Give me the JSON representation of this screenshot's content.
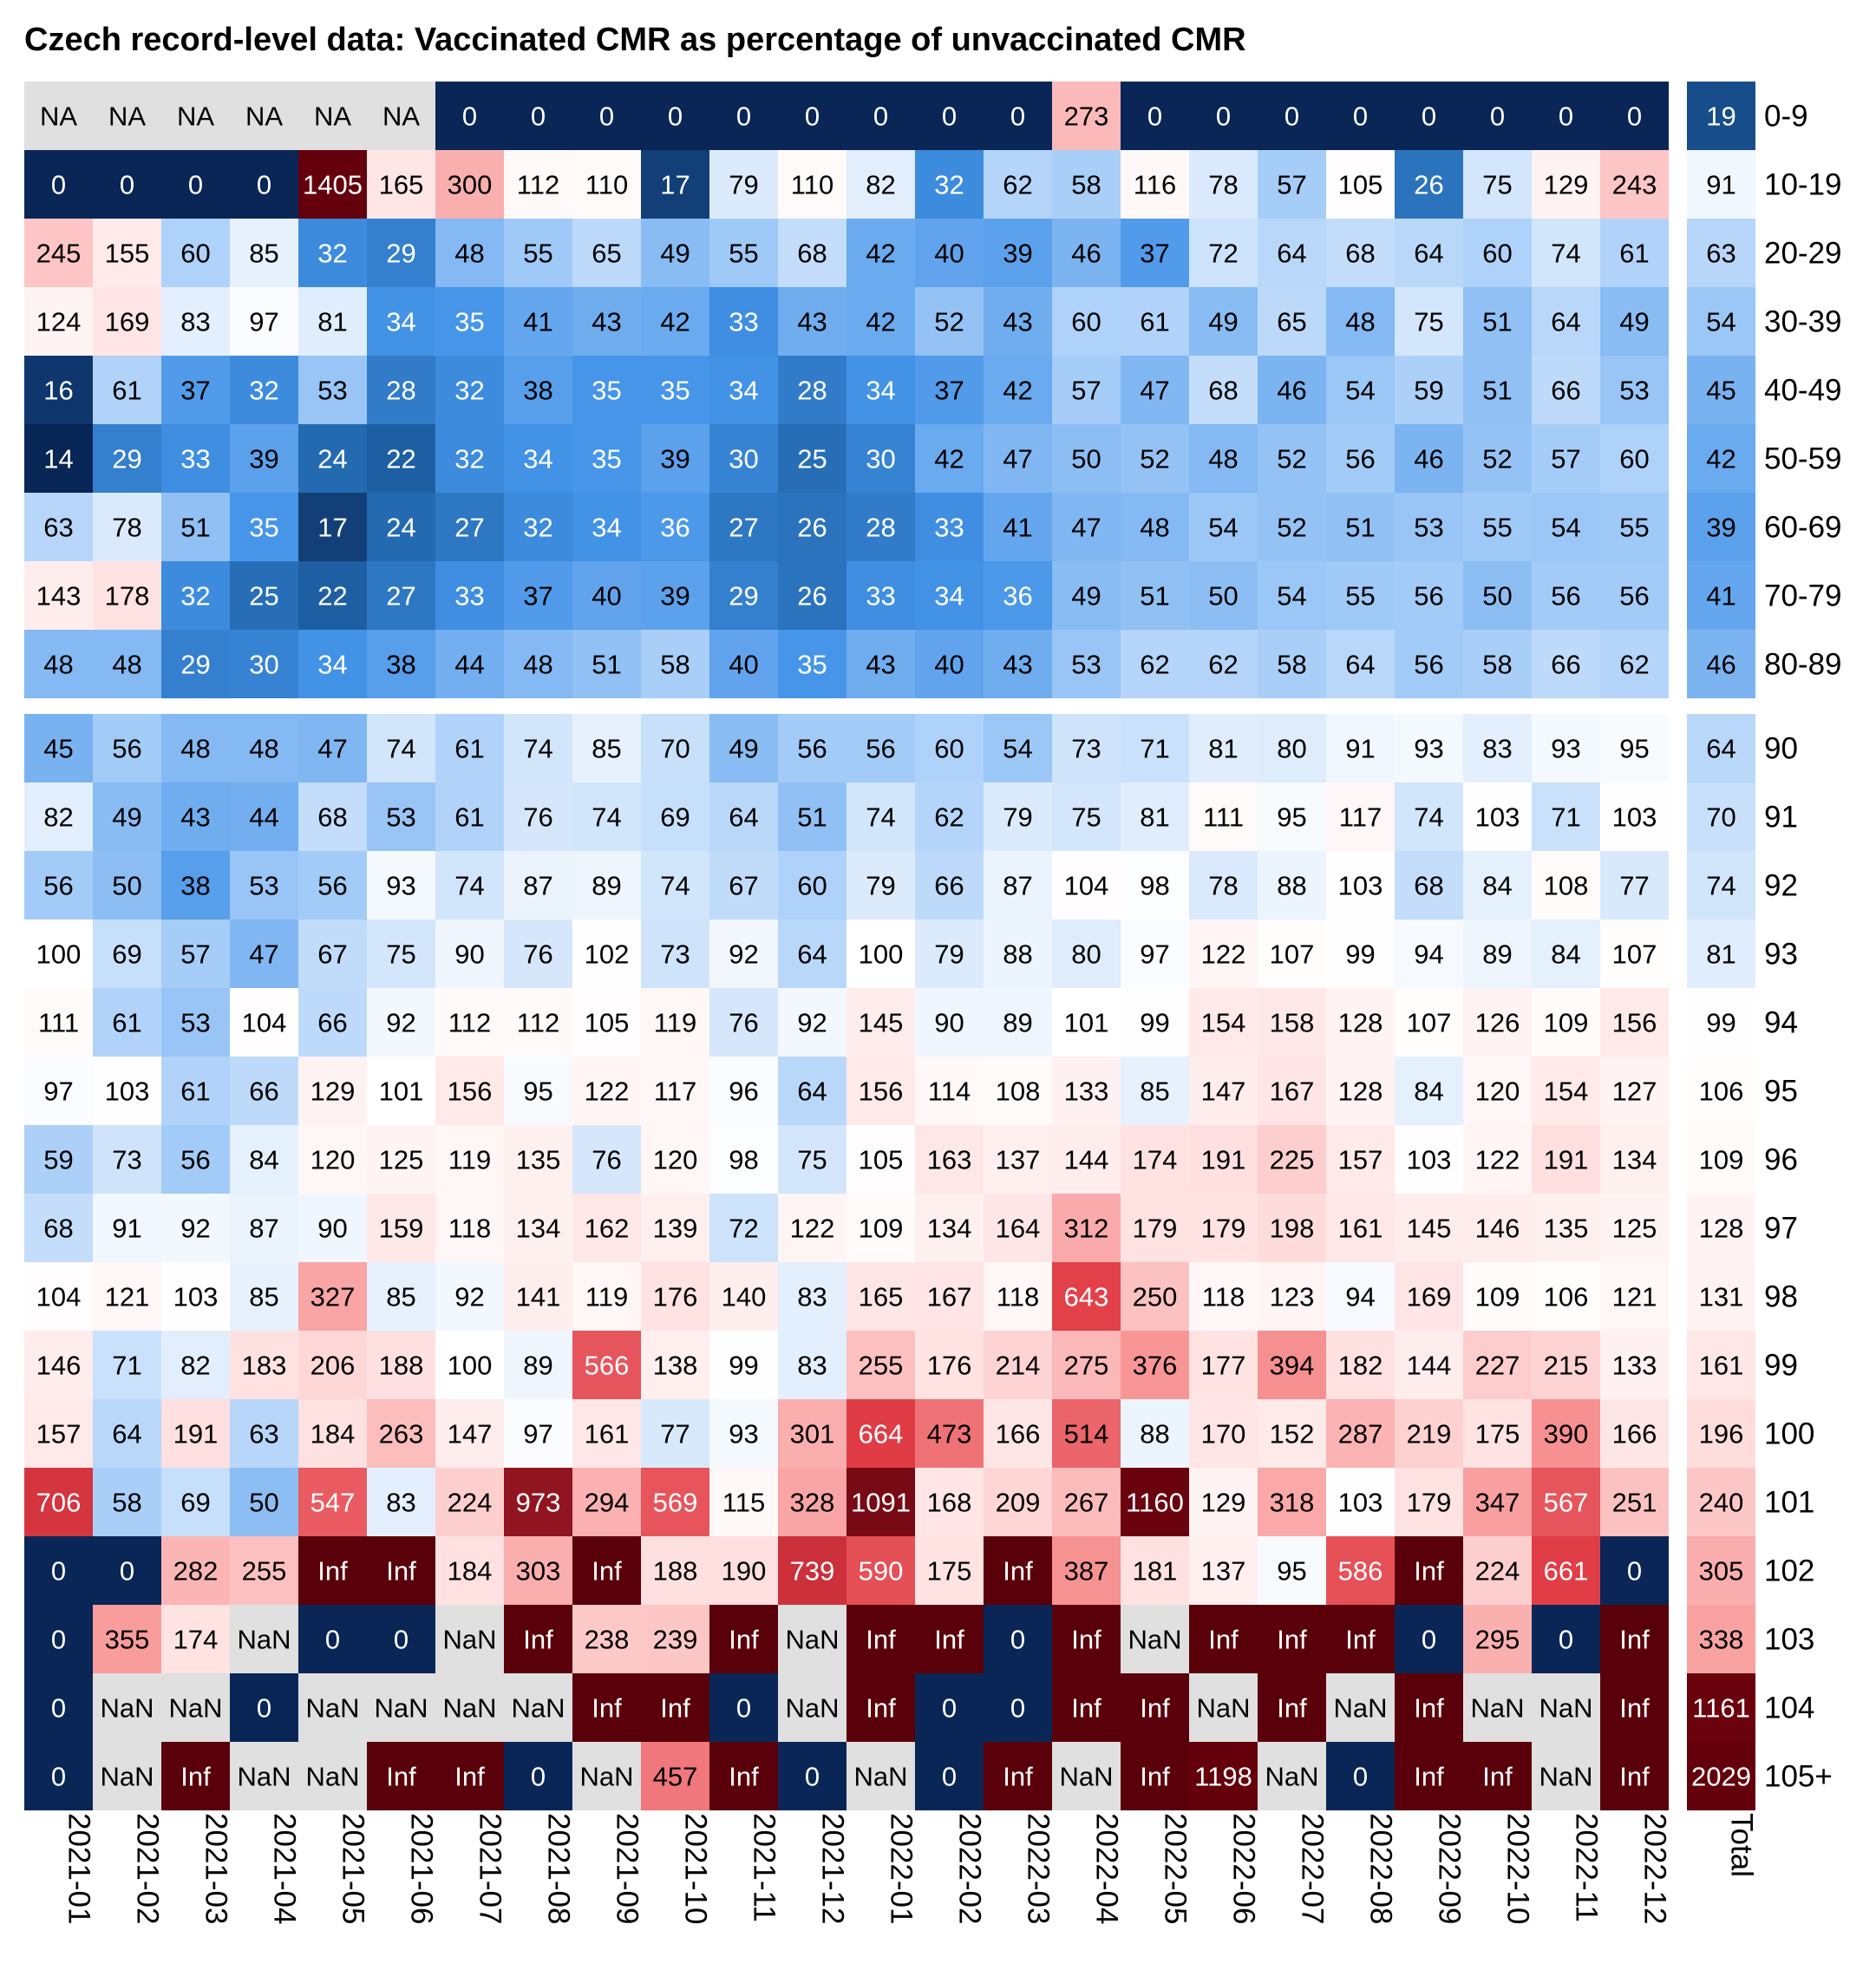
{
  "chart_data": {
    "type": "heatmap",
    "title": "Czech record-level data: Vaccinated CMR as percentage of unvaccinated CMR",
    "columns": [
      "2021-01",
      "2021-02",
      "2021-03",
      "2021-04",
      "2021-05",
      "2021-06",
      "2021-07",
      "2021-08",
      "2021-09",
      "2021-10",
      "2021-11",
      "2021-12",
      "2022-01",
      "2022-02",
      "2022-03",
      "2022-04",
      "2022-05",
      "2022-06",
      "2022-07",
      "2022-08",
      "2022-09",
      "2022-10",
      "2022-11",
      "2022-12"
    ],
    "total_label": "Total",
    "na_color": "#e0e0e0",
    "color_scale": "diverging blue-white-red, centered at 100 (log scale), blue below 100, red above 100",
    "groups": [
      {
        "rows": [
          {
            "label": "0-9",
            "values": [
              "NA",
              "NA",
              "NA",
              "NA",
              "NA",
              "NA",
              "0",
              "0",
              "0",
              "0",
              "0",
              "0",
              "0",
              "0",
              "0",
              "273",
              "0",
              "0",
              "0",
              "0",
              "0",
              "0",
              "0",
              "0"
            ],
            "total": "19"
          },
          {
            "label": "10-19",
            "values": [
              "0",
              "0",
              "0",
              "0",
              "1405",
              "165",
              "300",
              "112",
              "110",
              "17",
              "79",
              "110",
              "82",
              "32",
              "62",
              "58",
              "116",
              "78",
              "57",
              "105",
              "26",
              "75",
              "129",
              "243"
            ],
            "total": "91"
          },
          {
            "label": "20-29",
            "values": [
              "245",
              "155",
              "60",
              "85",
              "32",
              "29",
              "48",
              "55",
              "65",
              "49",
              "55",
              "68",
              "42",
              "40",
              "39",
              "46",
              "37",
              "72",
              "64",
              "68",
              "64",
              "60",
              "74",
              "61"
            ],
            "total": "63"
          },
          {
            "label": "30-39",
            "values": [
              "124",
              "169",
              "83",
              "97",
              "81",
              "34",
              "35",
              "41",
              "43",
              "42",
              "33",
              "43",
              "42",
              "52",
              "43",
              "60",
              "61",
              "49",
              "65",
              "48",
              "75",
              "51",
              "64",
              "49"
            ],
            "total": "54"
          },
          {
            "label": "40-49",
            "values": [
              "16",
              "61",
              "37",
              "32",
              "53",
              "28",
              "32",
              "38",
              "35",
              "35",
              "34",
              "28",
              "34",
              "37",
              "42",
              "57",
              "47",
              "68",
              "46",
              "54",
              "59",
              "51",
              "66",
              "53"
            ],
            "total": "45"
          },
          {
            "label": "50-59",
            "values": [
              "14",
              "29",
              "33",
              "39",
              "24",
              "22",
              "32",
              "34",
              "35",
              "39",
              "30",
              "25",
              "30",
              "42",
              "47",
              "50",
              "52",
              "48",
              "52",
              "56",
              "46",
              "52",
              "57",
              "60"
            ],
            "total": "42"
          },
          {
            "label": "60-69",
            "values": [
              "63",
              "78",
              "51",
              "35",
              "17",
              "24",
              "27",
              "32",
              "34",
              "36",
              "27",
              "26",
              "28",
              "33",
              "41",
              "47",
              "48",
              "54",
              "52",
              "51",
              "53",
              "55",
              "54",
              "55"
            ],
            "total": "39"
          },
          {
            "label": "70-79",
            "values": [
              "143",
              "178",
              "32",
              "25",
              "22",
              "27",
              "33",
              "37",
              "40",
              "39",
              "29",
              "26",
              "33",
              "34",
              "36",
              "49",
              "51",
              "50",
              "54",
              "55",
              "56",
              "50",
              "56",
              "56"
            ],
            "total": "41"
          },
          {
            "label": "80-89",
            "values": [
              "48",
              "48",
              "29",
              "30",
              "34",
              "38",
              "44",
              "48",
              "51",
              "58",
              "40",
              "35",
              "43",
              "40",
              "43",
              "53",
              "62",
              "62",
              "58",
              "64",
              "56",
              "58",
              "66",
              "62"
            ],
            "total": "46"
          }
        ]
      },
      {
        "rows": [
          {
            "label": "90",
            "values": [
              "45",
              "56",
              "48",
              "48",
              "47",
              "74",
              "61",
              "74",
              "85",
              "70",
              "49",
              "56",
              "56",
              "60",
              "54",
              "73",
              "71",
              "81",
              "80",
              "91",
              "93",
              "83",
              "93",
              "95"
            ],
            "total": "64"
          },
          {
            "label": "91",
            "values": [
              "82",
              "49",
              "43",
              "44",
              "68",
              "53",
              "61",
              "76",
              "74",
              "69",
              "64",
              "51",
              "74",
              "62",
              "79",
              "75",
              "81",
              "111",
              "95",
              "117",
              "74",
              "103",
              "71",
              "103"
            ],
            "total": "70"
          },
          {
            "label": "92",
            "values": [
              "56",
              "50",
              "38",
              "53",
              "56",
              "93",
              "74",
              "87",
              "89",
              "74",
              "67",
              "60",
              "79",
              "66",
              "87",
              "104",
              "98",
              "78",
              "88",
              "103",
              "68",
              "84",
              "108",
              "77"
            ],
            "total": "74"
          },
          {
            "label": "93",
            "values": [
              "100",
              "69",
              "57",
              "47",
              "67",
              "75",
              "90",
              "76",
              "102",
              "73",
              "92",
              "64",
              "100",
              "79",
              "88",
              "80",
              "97",
              "122",
              "107",
              "99",
              "94",
              "89",
              "84",
              "107"
            ],
            "total": "81"
          },
          {
            "label": "94",
            "values": [
              "111",
              "61",
              "53",
              "104",
              "66",
              "92",
              "112",
              "112",
              "105",
              "119",
              "76",
              "92",
              "145",
              "90",
              "89",
              "101",
              "99",
              "154",
              "158",
              "128",
              "107",
              "126",
              "109",
              "156"
            ],
            "total": "99"
          },
          {
            "label": "95",
            "values": [
              "97",
              "103",
              "61",
              "66",
              "129",
              "101",
              "156",
              "95",
              "122",
              "117",
              "96",
              "64",
              "156",
              "114",
              "108",
              "133",
              "85",
              "147",
              "167",
              "128",
              "84",
              "120",
              "154",
              "127"
            ],
            "total": "106"
          },
          {
            "label": "96",
            "values": [
              "59",
              "73",
              "56",
              "84",
              "120",
              "125",
              "119",
              "135",
              "76",
              "120",
              "98",
              "75",
              "105",
              "163",
              "137",
              "144",
              "174",
              "191",
              "225",
              "157",
              "103",
              "122",
              "191",
              "134"
            ],
            "total": "109"
          },
          {
            "label": "97",
            "values": [
              "68",
              "91",
              "92",
              "87",
              "90",
              "159",
              "118",
              "134",
              "162",
              "139",
              "72",
              "122",
              "109",
              "134",
              "164",
              "312",
              "179",
              "179",
              "198",
              "161",
              "145",
              "146",
              "135",
              "125"
            ],
            "total": "128"
          },
          {
            "label": "98",
            "values": [
              "104",
              "121",
              "103",
              "85",
              "327",
              "85",
              "92",
              "141",
              "119",
              "176",
              "140",
              "83",
              "165",
              "167",
              "118",
              "643",
              "250",
              "118",
              "123",
              "94",
              "169",
              "109",
              "106",
              "121"
            ],
            "total": "131"
          },
          {
            "label": "99",
            "values": [
              "146",
              "71",
              "82",
              "183",
              "206",
              "188",
              "100",
              "89",
              "566",
              "138",
              "99",
              "83",
              "255",
              "176",
              "214",
              "275",
              "376",
              "177",
              "394",
              "182",
              "144",
              "227",
              "215",
              "133"
            ],
            "total": "161"
          },
          {
            "label": "100",
            "values": [
              "157",
              "64",
              "191",
              "63",
              "184",
              "263",
              "147",
              "97",
              "161",
              "77",
              "93",
              "301",
              "664",
              "473",
              "166",
              "514",
              "88",
              "170",
              "152",
              "287",
              "219",
              "175",
              "390",
              "166"
            ],
            "total": "196"
          },
          {
            "label": "101",
            "values": [
              "706",
              "58",
              "69",
              "50",
              "547",
              "83",
              "224",
              "973",
              "294",
              "569",
              "115",
              "328",
              "1091",
              "168",
              "209",
              "267",
              "1160",
              "129",
              "318",
              "103",
              "179",
              "347",
              "567",
              "251"
            ],
            "total": "240"
          },
          {
            "label": "102",
            "values": [
              "0",
              "0",
              "282",
              "255",
              "Inf",
              "Inf",
              "184",
              "303",
              "Inf",
              "188",
              "190",
              "739",
              "590",
              "175",
              "Inf",
              "387",
              "181",
              "137",
              "95",
              "586",
              "Inf",
              "224",
              "661",
              "0"
            ],
            "total": "305"
          },
          {
            "label": "103",
            "values": [
              "0",
              "355",
              "174",
              "NaN",
              "0",
              "0",
              "NaN",
              "Inf",
              "238",
              "239",
              "Inf",
              "NaN",
              "Inf",
              "Inf",
              "0",
              "Inf",
              "NaN",
              "Inf",
              "Inf",
              "Inf",
              "0",
              "295",
              "0",
              "Inf"
            ],
            "total": "338"
          },
          {
            "label": "104",
            "values": [
              "0",
              "NaN",
              "NaN",
              "0",
              "NaN",
              "NaN",
              "NaN",
              "NaN",
              "Inf",
              "Inf",
              "0",
              "NaN",
              "Inf",
              "0",
              "0",
              "Inf",
              "Inf",
              "NaN",
              "Inf",
              "NaN",
              "Inf",
              "NaN",
              "NaN",
              "Inf"
            ],
            "total": "1161"
          },
          {
            "label": "105+",
            "values": [
              "0",
              "NaN",
              "Inf",
              "NaN",
              "NaN",
              "Inf",
              "Inf",
              "0",
              "NaN",
              "457",
              "Inf",
              "0",
              "NaN",
              "0",
              "Inf",
              "NaN",
              "Inf",
              "1198",
              "NaN",
              "0",
              "Inf",
              "Inf",
              "NaN",
              "Inf"
            ],
            "total": "2029"
          }
        ]
      }
    ]
  }
}
